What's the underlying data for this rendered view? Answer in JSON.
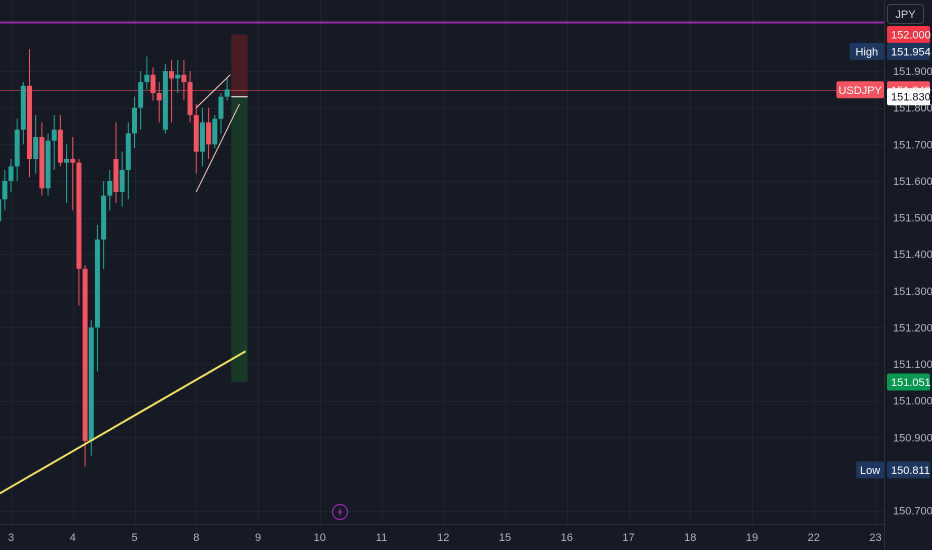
{
  "chart_data": {
    "type": "candlestick",
    "symbol": "USDJPY",
    "currency": "JPY",
    "ylim": [
      150.65,
      152.08
    ],
    "y_ticks": [
      151.9,
      151.8,
      151.7,
      151.6,
      151.5,
      151.4,
      151.3,
      151.2,
      151.1,
      151.0,
      150.9,
      150.7
    ],
    "x_ticks": [
      {
        "label": "3",
        "x": 0
      },
      {
        "label": "4",
        "x": 10
      },
      {
        "label": "5",
        "x": 20
      },
      {
        "label": "8",
        "x": 30
      },
      {
        "label": "9",
        "x": 40
      },
      {
        "label": "10",
        "x": 50
      },
      {
        "label": "11",
        "x": 60
      },
      {
        "label": "12",
        "x": 70
      },
      {
        "label": "15",
        "x": 80
      },
      {
        "label": "16",
        "x": 90
      },
      {
        "label": "17",
        "x": 100
      },
      {
        "label": "18",
        "x": 110
      },
      {
        "label": "19",
        "x": 120
      },
      {
        "label": "22",
        "x": 130
      },
      {
        "label": "23",
        "x": 140
      }
    ],
    "candles": [
      {
        "x": -2,
        "o": 151.49,
        "h": 151.57,
        "l": 151.43,
        "c": 151.55
      },
      {
        "x": -1,
        "o": 151.55,
        "h": 151.63,
        "l": 151.52,
        "c": 151.6
      },
      {
        "x": 0,
        "o": 151.6,
        "h": 151.66,
        "l": 151.57,
        "c": 151.64
      },
      {
        "x": 1,
        "o": 151.64,
        "h": 151.77,
        "l": 151.6,
        "c": 151.74
      },
      {
        "x": 2,
        "o": 151.74,
        "h": 151.87,
        "l": 151.7,
        "c": 151.86
      },
      {
        "x": 3,
        "o": 151.86,
        "h": 151.96,
        "l": 151.61,
        "c": 151.66
      },
      {
        "x": 4,
        "o": 151.66,
        "h": 151.78,
        "l": 151.62,
        "c": 151.72
      },
      {
        "x": 5,
        "o": 151.72,
        "h": 151.76,
        "l": 151.56,
        "c": 151.58
      },
      {
        "x": 6,
        "o": 151.58,
        "h": 151.73,
        "l": 151.56,
        "c": 151.71
      },
      {
        "x": 7,
        "o": 151.71,
        "h": 151.78,
        "l": 151.63,
        "c": 151.74
      },
      {
        "x": 8,
        "o": 151.74,
        "h": 151.78,
        "l": 151.64,
        "c": 151.65
      },
      {
        "x": 9,
        "o": 151.65,
        "h": 151.7,
        "l": 151.54,
        "c": 151.66
      },
      {
        "x": 10,
        "o": 151.66,
        "h": 151.72,
        "l": 151.52,
        "c": 151.65
      },
      {
        "x": 11,
        "o": 151.65,
        "h": 151.66,
        "l": 151.26,
        "c": 151.36
      },
      {
        "x": 12,
        "o": 151.36,
        "h": 151.37,
        "l": 150.82,
        "c": 150.89
      },
      {
        "x": 13,
        "o": 150.89,
        "h": 151.22,
        "l": 150.85,
        "c": 151.2
      },
      {
        "x": 14,
        "o": 151.2,
        "h": 151.48,
        "l": 151.08,
        "c": 151.44
      },
      {
        "x": 15,
        "o": 151.44,
        "h": 151.6,
        "l": 151.36,
        "c": 151.56
      },
      {
        "x": 16,
        "o": 151.56,
        "h": 151.63,
        "l": 151.52,
        "c": 151.6
      },
      {
        "x": 17,
        "o": 151.66,
        "h": 151.76,
        "l": 151.54,
        "c": 151.57
      },
      {
        "x": 18,
        "o": 151.57,
        "h": 151.68,
        "l": 151.53,
        "c": 151.63
      },
      {
        "x": 19,
        "o": 151.63,
        "h": 151.76,
        "l": 151.55,
        "c": 151.73
      },
      {
        "x": 20,
        "o": 151.73,
        "h": 151.83,
        "l": 151.69,
        "c": 151.8
      },
      {
        "x": 21,
        "o": 151.8,
        "h": 151.9,
        "l": 151.74,
        "c": 151.87
      },
      {
        "x": 22,
        "o": 151.87,
        "h": 151.94,
        "l": 151.85,
        "c": 151.89
      },
      {
        "x": 23,
        "o": 151.89,
        "h": 151.91,
        "l": 151.82,
        "c": 151.84
      },
      {
        "x": 24,
        "o": 151.84,
        "h": 151.87,
        "l": 151.76,
        "c": 151.82
      },
      {
        "x": 25,
        "o": 151.74,
        "h": 151.92,
        "l": 151.73,
        "c": 151.9
      },
      {
        "x": 26,
        "o": 151.9,
        "h": 151.93,
        "l": 151.76,
        "c": 151.88
      },
      {
        "x": 27,
        "o": 151.88,
        "h": 151.93,
        "l": 151.84,
        "c": 151.89
      },
      {
        "x": 28,
        "o": 151.89,
        "h": 151.93,
        "l": 151.82,
        "c": 151.87
      },
      {
        "x": 29,
        "o": 151.87,
        "h": 151.9,
        "l": 151.76,
        "c": 151.78
      },
      {
        "x": 30,
        "o": 151.78,
        "h": 151.81,
        "l": 151.62,
        "c": 151.68
      },
      {
        "x": 31,
        "o": 151.68,
        "h": 151.8,
        "l": 151.64,
        "c": 151.76
      },
      {
        "x": 32,
        "o": 151.76,
        "h": 151.8,
        "l": 151.66,
        "c": 151.7
      },
      {
        "x": 33,
        "o": 151.7,
        "h": 151.78,
        "l": 151.69,
        "c": 151.77
      },
      {
        "x": 34,
        "o": 151.77,
        "h": 151.84,
        "l": 151.73,
        "c": 151.83
      },
      {
        "x": 35,
        "o": 151.83,
        "h": 151.88,
        "l": 151.82,
        "c": 151.85
      }
    ],
    "trendline": {
      "from": {
        "x": -2,
        "y": 150.745
      },
      "to": {
        "x": 38,
        "y": 151.135
      }
    },
    "wedge": [
      {
        "from": {
          "x": 30,
          "y": 151.57
        },
        "to": {
          "x": 37,
          "y": 151.81
        }
      },
      {
        "from": {
          "x": 30,
          "y": 151.8
        },
        "to": {
          "x": 35.5,
          "y": 151.89
        }
      }
    ],
    "resistance_level": 152.0,
    "position": {
      "x_start": 36,
      "x_end": 38,
      "entry": 151.83,
      "stop": 152.0,
      "target": 151.051
    },
    "price_labels": [
      {
        "kind": "resistance",
        "title": "",
        "value": "152.000",
        "price": 152.0,
        "bg": "#f23645",
        "fg": "#ffffff"
      },
      {
        "kind": "high",
        "title": "High",
        "value": "151.954",
        "price": 151.954,
        "bg": "#1e3760",
        "fg": "#ffffff"
      },
      {
        "kind": "symbol",
        "title": "USDJPY",
        "value": "151.849",
        "price": 151.849,
        "bg": "#f7525f",
        "fg": "#ffffff"
      },
      {
        "kind": "entry",
        "title": "",
        "value": "151.830",
        "price": 151.83,
        "bg": "#ffffff",
        "fg": "#131722"
      },
      {
        "kind": "target",
        "title": "",
        "value": "151.051",
        "price": 151.051,
        "bg": "#089950",
        "fg": "#ffffff"
      },
      {
        "kind": "low",
        "title": "Low",
        "value": "150.811",
        "price": 150.811,
        "bg": "#1e3760",
        "fg": "#ffffff"
      }
    ],
    "colors": {
      "background": "#161a25",
      "up": "#26a69a",
      "down": "#f7525f",
      "trendline": "#f0df5e",
      "resistance": "#9c27b0",
      "wedge": "#f7c8b9",
      "stop_zone": "#4a1d24",
      "target_zone": "#173b26",
      "grid": "#1f2330",
      "text": "#b2b5be"
    },
    "icons": {
      "events": "lightning-icon"
    }
  }
}
